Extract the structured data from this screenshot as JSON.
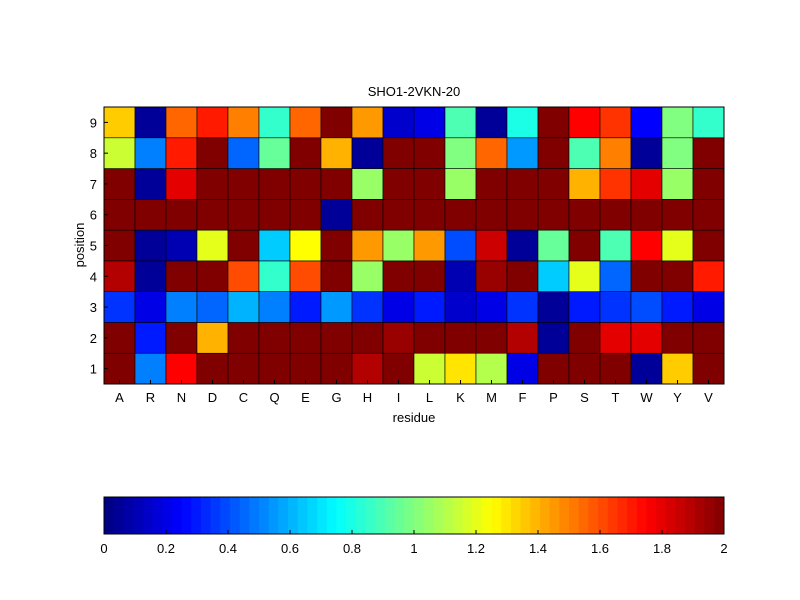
{
  "chart_data": {
    "type": "heatmap",
    "title": "SHO1-2VKN-20",
    "xlabel": "residue",
    "ylabel": "position",
    "x_categories": [
      "A",
      "R",
      "N",
      "D",
      "C",
      "Q",
      "E",
      "G",
      "H",
      "I",
      "L",
      "K",
      "M",
      "F",
      "P",
      "S",
      "T",
      "W",
      "Y",
      "V"
    ],
    "y_categories": [
      "1",
      "2",
      "3",
      "4",
      "5",
      "6",
      "7",
      "8",
      "9"
    ],
    "values": [
      [
        2.0,
        0.5,
        1.75,
        2.0,
        2.0,
        2.0,
        2.0,
        2.0,
        1.9,
        2.0,
        1.15,
        1.3,
        1.1,
        0.2,
        2.0,
        2.0,
        2.0,
        0.05,
        1.35,
        2.0
      ],
      [
        2.0,
        0.3,
        2.0,
        1.4,
        2.0,
        2.0,
        2.0,
        2.0,
        2.0,
        1.95,
        2.0,
        2.0,
        2.0,
        1.9,
        0.05,
        2.0,
        1.8,
        1.8,
        2.0,
        2.0
      ],
      [
        0.35,
        0.2,
        0.5,
        0.45,
        0.6,
        0.5,
        0.3,
        0.55,
        0.35,
        0.2,
        0.3,
        0.15,
        0.2,
        0.35,
        0.05,
        0.3,
        0.35,
        0.4,
        0.3,
        0.2
      ],
      [
        1.9,
        0.05,
        2.0,
        2.0,
        1.6,
        0.85,
        1.6,
        2.0,
        1.05,
        2.0,
        2.0,
        0.1,
        1.95,
        2.0,
        0.65,
        1.2,
        0.45,
        2.0,
        2.0,
        1.7
      ],
      [
        2.0,
        0.05,
        0.1,
        1.2,
        2.0,
        0.65,
        1.25,
        2.0,
        1.45,
        1.05,
        1.45,
        0.4,
        1.85,
        0.05,
        0.95,
        2.0,
        0.9,
        1.75,
        1.2,
        2.0
      ],
      [
        2.0,
        2.0,
        2.0,
        2.0,
        2.0,
        2.0,
        2.0,
        0.05,
        2.0,
        2.0,
        2.0,
        2.0,
        2.0,
        2.0,
        2.0,
        2.0,
        2.0,
        2.0,
        2.0,
        2.0
      ],
      [
        2.0,
        0.05,
        1.8,
        2.0,
        2.0,
        2.0,
        2.0,
        2.0,
        1.05,
        2.0,
        2.0,
        1.05,
        2.0,
        2.0,
        2.0,
        1.4,
        1.65,
        1.8,
        1.05,
        2.0
      ],
      [
        1.15,
        0.5,
        1.7,
        2.0,
        0.45,
        0.95,
        2.0,
        1.4,
        0.05,
        2.0,
        2.0,
        1.0,
        1.55,
        0.55,
        2.0,
        0.9,
        1.5,
        0.05,
        1.0,
        2.0
      ],
      [
        1.35,
        0.05,
        1.55,
        1.7,
        1.5,
        0.85,
        1.55,
        2.0,
        1.45,
        0.15,
        0.2,
        0.9,
        0.05,
        0.8,
        2.0,
        1.75,
        1.65,
        0.25,
        1.0,
        0.85
      ]
    ],
    "value_range": [
      0,
      2
    ],
    "colormap": "jet",
    "colorbar": {
      "position": "bottom",
      "ticks": [
        "0",
        "0.2",
        "0.4",
        "0.6",
        "0.8",
        "1",
        "1.2",
        "1.4",
        "1.6",
        "1.8",
        "2"
      ],
      "tick_values": [
        0,
        0.2,
        0.4,
        0.6,
        0.8,
        1.0,
        1.2,
        1.4,
        1.6,
        1.8,
        2.0
      ]
    }
  }
}
